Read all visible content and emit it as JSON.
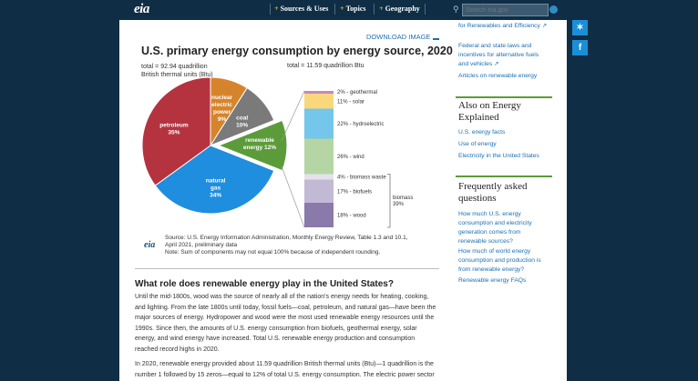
{
  "header": {
    "logo": "eia",
    "nav": [
      "Sources & Uses",
      "Topics",
      "Geography"
    ],
    "search_placeholder": "Search eia.gov"
  },
  "download_label": "DOWNLOAD IMAGE",
  "chart_title": "U.S. primary energy consumption by energy source, 2020",
  "total_left_line1": "total = 92.94 quadrillion",
  "total_left_line2": "British thermal units (Btu)",
  "total_right": "total = 11.59 quadrillion Btu",
  "chart_data": {
    "type": "pie",
    "title": "U.S. primary energy consumption by energy source, 2020",
    "pie": [
      {
        "name": "petroleum",
        "label": "petroleum",
        "value": 35,
        "value_label": "35%",
        "color": "#b5333f"
      },
      {
        "name": "natural gas",
        "label": "natural gas",
        "value": 34,
        "value_label": "34%",
        "color": "#1f8ede"
      },
      {
        "name": "renewable energy",
        "label": "renewable energy",
        "value": 12,
        "value_label": "12%",
        "color": "#5c9b3a"
      },
      {
        "name": "coal",
        "label": "coal",
        "value": 10,
        "value_label": "10%",
        "color": "#7a7a7a"
      },
      {
        "name": "nuclear electric power",
        "label": "nuclear electric power",
        "value": 9,
        "value_label": "9%",
        "color": "#d6842b"
      }
    ],
    "renewable_breakdown": [
      {
        "label": "2% - geothermal",
        "value": 2,
        "color": "#c48ab6"
      },
      {
        "label": "11% - solar",
        "value": 11,
        "color": "#f9d77b"
      },
      {
        "label": "22% - hydroelectric",
        "value": 22,
        "color": "#74c6ea"
      },
      {
        "label": "26% - wind",
        "value": 26,
        "color": "#b5d6a4"
      },
      {
        "label": "4% - biomass waste",
        "value": 4,
        "color": "#e6e2ec"
      },
      {
        "label": "17% - biofuels",
        "value": 17,
        "color": "#c2b9d4"
      },
      {
        "label": "18% - wood",
        "value": 18,
        "color": "#8a79ab"
      }
    ],
    "biomass_label": "biomass",
    "biomass_value": "39%"
  },
  "source_line1": "Source: U.S. Energy Information Administration, Monthly Energy Review, Table 1.3 and 10.1,",
  "source_line2": "April 2021, preliminary data",
  "source_line3": "Note: Sum of components may not equal 100% because of independent rounding.",
  "source_logo": "eia",
  "section_heading": "What role does renewable energy play in the United States?",
  "paragraph1": "Until the mid-1800s, wood was the source of nearly all of the nation's energy needs for heating, cooking, and lighting. From the late 1800s until today, fossil fuels—coal, petroleum, and natural gas—have been the major sources of energy. Hydropower and wood were the most used renewable energy resources until the 1990s. Since then, the amounts of U.S. energy consumption from biofuels, geothermal energy, solar energy, and wind energy have increased. Total U.S. renewable energy production and consumption reached record highs in 2020.",
  "paragraph2": "In 2020, renewable energy provided about 11.59 quadrillion British thermal units (Btu)—1 quadrillion is the number 1 followed by 15 zeros—equal to 12% of total U.S. energy consumption. The electric power sector",
  "sidebar": {
    "link_top": "for Renewables and Efficiency",
    "link_laws": "Federal and state laws and incentives for alternative fuels and vehicles",
    "link_articles": "Articles on renewable energy",
    "heading_also": "Also on Energy Explained",
    "links_also": [
      "U.S. energy facts",
      "Use of energy",
      "Electricity in the United States"
    ],
    "heading_faq": "Frequently asked questions",
    "faq_links": [
      "How much U.S. energy consumption and electricity generation comes from renewable sources?",
      "How much of world energy consumption and production is from renewable energy?",
      "Renewable energy FAQs"
    ]
  },
  "social": {
    "twitter_icon": "twitter-icon",
    "facebook_icon": "facebook-icon"
  }
}
